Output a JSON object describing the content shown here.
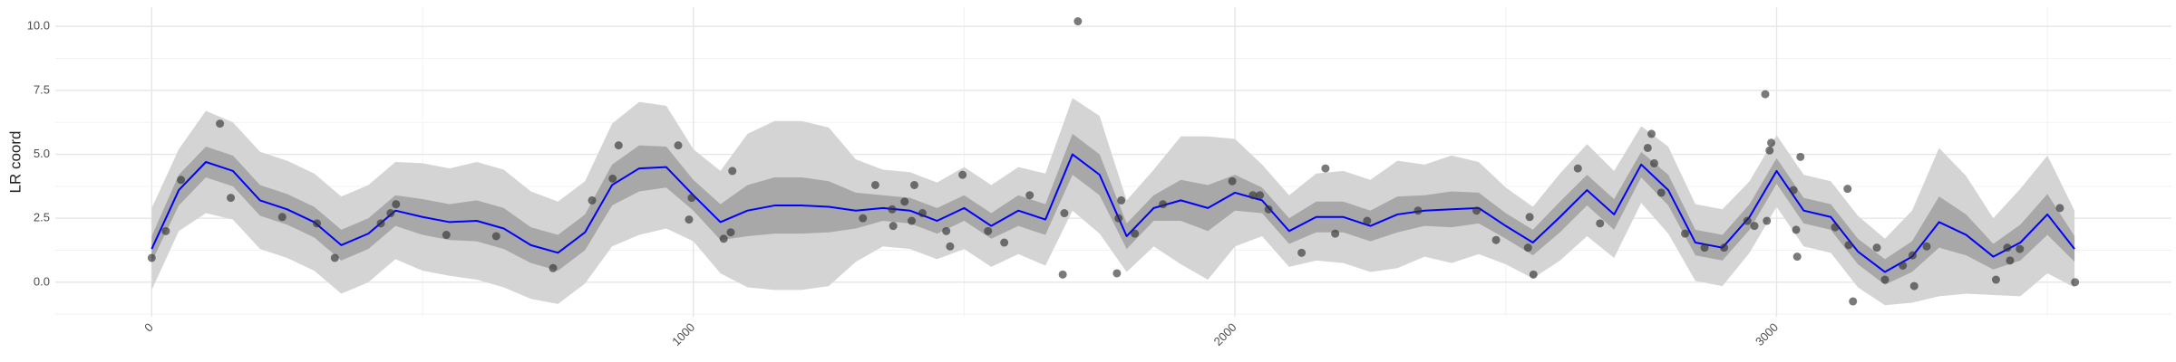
{
  "chart_data": {
    "type": "scatter",
    "y_label": "LR coord",
    "xlim": [
      -178,
      3729
    ],
    "ylim": [
      -1.35,
      10.75
    ],
    "xticks": [
      0,
      1000,
      2000,
      3000
    ],
    "xticks_minor": [
      500,
      1500,
      2500,
      3500
    ],
    "yticks": [
      {
        "value": 0,
        "label": "0.0"
      },
      2.5,
      {
        "value": 5,
        "label": "5.0"
      },
      7.5,
      {
        "value": 10,
        "label": "10.0"
      }
    ],
    "yticks_minor": [
      -1.25,
      1.25,
      3.75,
      6.25,
      8.75
    ],
    "grid": true,
    "points": {
      "color": "#333333",
      "x": [
        0,
        26,
        54,
        126,
        146,
        241,
        305,
        338,
        423,
        441,
        451,
        544,
        636,
        741,
        813,
        851,
        862,
        972,
        992,
        997,
        1056,
        1069,
        1072,
        1313,
        1336,
        1367,
        1369,
        1390,
        1403,
        1408,
        1423,
        1467,
        1474,
        1497,
        1544,
        1574,
        1621,
        1682,
        1685,
        1710,
        1782,
        1785,
        1790,
        1815,
        1867,
        1995,
        2033,
        2046,
        2062,
        2123,
        2167,
        2185,
        2244,
        2338,
        2446,
        2482,
        2541,
        2544,
        2551,
        2633,
        2674,
        2762,
        2769,
        2774,
        2787,
        2831,
        2867,
        2903,
        2946,
        2959,
        2979,
        2982,
        2987,
        2990,
        3031,
        3036,
        3038,
        3044,
        3108,
        3131,
        3133,
        3141,
        3185,
        3200,
        3233,
        3251,
        3254,
        3277,
        3405,
        3426,
        3431,
        3449,
        3523,
        3551
      ],
      "y": [
        0.95,
        2.0,
        4.0,
        6.2,
        3.3,
        2.55,
        2.3,
        0.95,
        2.3,
        2.7,
        3.05,
        1.85,
        1.8,
        0.55,
        3.2,
        4.05,
        5.35,
        5.35,
        2.45,
        3.3,
        1.7,
        1.95,
        4.35,
        2.5,
        3.8,
        2.85,
        2.2,
        3.15,
        2.4,
        3.8,
        2.7,
        2.0,
        1.4,
        4.2,
        2.0,
        1.55,
        3.4,
        0.3,
        2.7,
        10.2,
        0.35,
        2.5,
        3.2,
        1.9,
        3.05,
        3.95,
        3.4,
        3.4,
        2.85,
        1.15,
        4.45,
        1.9,
        2.4,
        2.8,
        2.8,
        1.65,
        1.35,
        2.55,
        0.3,
        4.45,
        2.3,
        5.25,
        5.8,
        4.65,
        3.5,
        1.9,
        1.35,
        1.35,
        2.4,
        2.2,
        7.35,
        2.4,
        5.15,
        5.45,
        3.6,
        2.05,
        1.0,
        4.9,
        2.15,
        3.65,
        1.45,
        -0.75,
        1.35,
        0.1,
        0.65,
        1.05,
        -0.15,
        1.4,
        0.1,
        1.35,
        0.85,
        1.3,
        2.9,
        0.0
      ]
    },
    "smooth": {
      "color": "#0000ff",
      "x": [
        0,
        50,
        100,
        150,
        200,
        250,
        300,
        350,
        400,
        450,
        500,
        550,
        600,
        650,
        700,
        750,
        800,
        850,
        900,
        950,
        1000,
        1050,
        1100,
        1150,
        1200,
        1250,
        1300,
        1350,
        1400,
        1450,
        1500,
        1550,
        1600,
        1650,
        1700,
        1750,
        1800,
        1850,
        1900,
        1950,
        2000,
        2050,
        2100,
        2150,
        2200,
        2250,
        2300,
        2350,
        2400,
        2450,
        2500,
        2550,
        2600,
        2650,
        2700,
        2750,
        2800,
        2850,
        2900,
        2950,
        3000,
        3050,
        3100,
        3150,
        3200,
        3250,
        3300,
        3350,
        3400,
        3450,
        3500,
        3550
      ],
      "values": [
        1.3,
        3.6,
        4.7,
        4.35,
        3.2,
        2.85,
        2.35,
        1.45,
        1.9,
        2.8,
        2.55,
        2.35,
        2.4,
        2.1,
        1.45,
        1.15,
        1.95,
        3.8,
        4.45,
        4.5,
        3.4,
        2.35,
        2.8,
        3.0,
        3.0,
        2.95,
        2.8,
        2.9,
        2.8,
        2.4,
        2.9,
        2.2,
        2.8,
        2.45,
        5.0,
        4.2,
        1.8,
        2.9,
        3.2,
        2.9,
        3.5,
        3.2,
        2.0,
        2.55,
        2.55,
        2.2,
        2.65,
        2.8,
        2.85,
        2.9,
        2.2,
        1.55,
        2.55,
        3.6,
        2.65,
        4.6,
        3.6,
        1.55,
        1.35,
        2.55,
        4.35,
        2.8,
        2.55,
        1.2,
        0.4,
        1.0,
        2.35,
        1.85,
        1.0,
        1.55,
        2.65,
        1.3
      ],
      "bands": [
        {
          "color": "#d4d4d4",
          "lower": [
            -0.3,
            2.0,
            2.7,
            2.45,
            1.3,
            0.95,
            0.45,
            -0.45,
            0,
            0.9,
            0.45,
            0.25,
            0.1,
            -0.2,
            -0.65,
            -0.85,
            -0.05,
            1.4,
            1.85,
            2.1,
            1.6,
            0.35,
            -0.2,
            -0.3,
            -0.3,
            -0.15,
            0.8,
            1.4,
            1.3,
            0.9,
            1.3,
            0.6,
            1.1,
            0.65,
            2.8,
            1.9,
            0.4,
            1.4,
            0.7,
            0.1,
            1.4,
            1.8,
            0.6,
            0.85,
            0.75,
            0.4,
            0.55,
            1.0,
            0.75,
            1.1,
            0.7,
            0.15,
            0.85,
            1.8,
            0.95,
            3.1,
            1.9,
            0.05,
            -0.15,
            1.15,
            2.95,
            1.4,
            1.15,
            -0.2,
            -0.9,
            -0.8,
            -0.55,
            -0.45,
            -0.5,
            -0.55,
            0.35,
            -0.2
          ],
          "upper": [
            2.9,
            5.2,
            6.7,
            6.25,
            5.1,
            4.75,
            4.25,
            3.35,
            3.8,
            4.7,
            4.65,
            4.45,
            4.7,
            4.4,
            3.55,
            3.15,
            3.95,
            6.2,
            7.05,
            6.9,
            5.2,
            4.35,
            5.8,
            6.3,
            6.3,
            6.05,
            4.8,
            4.4,
            4.3,
            3.9,
            4.5,
            3.8,
            4.5,
            4.25,
            7.2,
            6.5,
            3.2,
            4.4,
            5.7,
            5.7,
            5.6,
            4.6,
            3.4,
            4.25,
            4.35,
            4.0,
            4.75,
            4.6,
            4.95,
            4.7,
            3.7,
            2.95,
            4.25,
            5.4,
            4.35,
            6.1,
            5.3,
            3.05,
            2.85,
            3.95,
            5.75,
            4.2,
            3.95,
            2.6,
            1.7,
            2.8,
            5.25,
            4.15,
            2.5,
            3.65,
            4.95,
            2.8
          ]
        },
        {
          "color": "#a8a8a8",
          "lower": [
            0.8,
            3.0,
            4.1,
            3.75,
            2.6,
            2.25,
            1.75,
            0.85,
            1.3,
            2.2,
            1.85,
            1.65,
            1.6,
            1.3,
            0.75,
            0.45,
            1.25,
            3.0,
            3.55,
            3.7,
            2.8,
            1.65,
            1.8,
            1.9,
            1.9,
            1.95,
            2.1,
            2.4,
            2.3,
            1.9,
            2.4,
            1.7,
            2.2,
            1.85,
            4.2,
            3.4,
            1.3,
            2.4,
            2.4,
            2.0,
            2.8,
            2.7,
            1.5,
            1.95,
            1.95,
            1.6,
            1.95,
            2.2,
            2.15,
            2.3,
            1.7,
            1.05,
            1.95,
            3.0,
            2.05,
            4.1,
            3.0,
            1.05,
            0.85,
            2.05,
            3.85,
            2.3,
            2.05,
            0.7,
            -0.1,
            0.4,
            1.35,
            1.05,
            0.5,
            0.85,
            1.85,
            0.8
          ],
          "upper": [
            1.8,
            4.2,
            5.3,
            4.95,
            3.8,
            3.45,
            2.95,
            2.05,
            2.5,
            3.4,
            3.25,
            3.05,
            3.2,
            2.9,
            2.15,
            1.85,
            2.65,
            4.6,
            5.35,
            5.3,
            4.0,
            3.05,
            3.8,
            4.1,
            4.1,
            3.95,
            3.5,
            3.4,
            3.3,
            2.9,
            3.4,
            2.7,
            3.4,
            3.05,
            5.8,
            5.0,
            2.3,
            3.4,
            4.0,
            3.8,
            4.2,
            3.7,
            2.5,
            3.15,
            3.15,
            2.8,
            3.35,
            3.4,
            3.55,
            3.5,
            2.7,
            2.05,
            3.15,
            4.2,
            3.25,
            5.1,
            4.2,
            2.05,
            1.85,
            3.05,
            4.85,
            3.3,
            3.05,
            1.7,
            0.9,
            1.6,
            3.35,
            2.65,
            1.5,
            2.25,
            3.45,
            1.8
          ]
        }
      ]
    }
  }
}
